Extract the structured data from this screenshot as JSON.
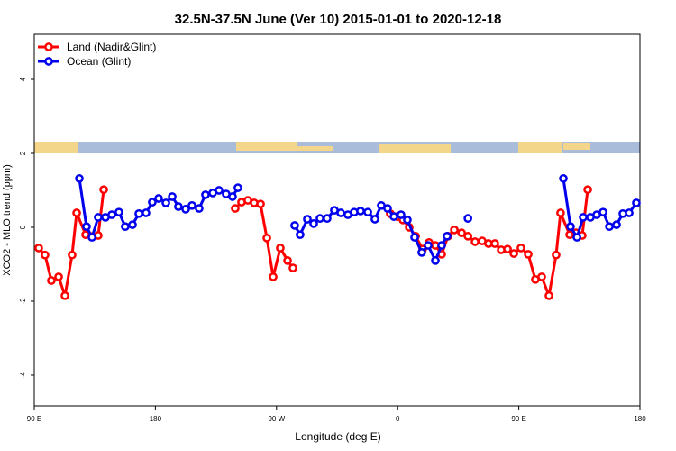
{
  "chart_data": {
    "type": "line",
    "title": "32.5N-37.5N June (Ver 10)   2015-01-01 to 2020-12-18",
    "x_label": "Longitude (deg E)",
    "y_label": "XCO2 - MLO trend (ppm)",
    "xlim": [
      90,
      540
    ],
    "ylim": [
      -4.83,
      5.22
    ],
    "xticks": [
      {
        "value": 90,
        "label": "90 E"
      },
      180,
      {
        "value": 270,
        "label": "90 W"
      },
      {
        "value": 360,
        "label": "0"
      },
      {
        "value": 450,
        "label": "90 E"
      },
      {
        "value": 540,
        "label": "180"
      }
    ],
    "yticks": [
      -4,
      -2,
      0,
      2,
      4
    ],
    "legend": "top-left",
    "series": [
      {
        "name": "Land (Nadir&Glint)",
        "color": "#ff0000",
        "x": [
          93.3,
          98,
          102.7,
          108.1,
          112.8,
          118.1,
          121.5,
          128.2,
          132.9,
          137.5,
          141.6,
          null,
          239.3,
          244,
          248.7,
          253.4,
          258.1,
          262.8,
          267.5,
          272.8,
          278.2,
          282.2,
          null,
          354.5,
          359.8,
          363.9,
          368.6,
          373.3,
          378.6,
          383.3,
          388,
          392.7,
          397.4,
          402.1,
          407.5,
          412.2,
          417.5,
          422.8,
          427.5,
          432.2,
          436.9,
          441.6,
          446.3,
          451.6,
          457,
          462.3,
          467,
          472.4,
          477.7,
          481,
          487.8,
          492.5,
          497.1,
          501.2
        ],
        "values": [
          -0.56,
          -0.75,
          -1.44,
          -1.34,
          -1.85,
          -0.75,
          0.39,
          -0.2,
          -0.25,
          -0.22,
          1.02,
          null,
          0.51,
          0.68,
          0.73,
          0.66,
          0.63,
          -0.29,
          -1.34,
          -0.56,
          -0.9,
          -1.1,
          null,
          0.37,
          0.29,
          0.2,
          0.0,
          -0.24,
          -0.59,
          -0.41,
          -0.49,
          -0.73,
          -0.24,
          -0.07,
          -0.15,
          -0.24,
          -0.39,
          -0.37,
          -0.44,
          -0.44,
          -0.61,
          -0.59,
          -0.71,
          -0.56,
          -0.73,
          -1.41,
          -1.34,
          -1.85,
          -0.75,
          0.39,
          -0.2,
          -0.15,
          -0.22,
          1.02
        ]
      },
      {
        "name": "Ocean (Glint)",
        "color": "#0000ee",
        "x": [
          123.5,
          128.8,
          132.9,
          137.5,
          142.9,
          147.6,
          152.9,
          157.6,
          163,
          167.7,
          173,
          177.7,
          182.4,
          187.8,
          192.5,
          197.1,
          202.5,
          207.2,
          212.5,
          217.2,
          222.6,
          227.3,
          232.6,
          237.3,
          241.3,
          null,
          283.5,
          287.5,
          292.9,
          297.6,
          302.3,
          307.6,
          313,
          317.7,
          323,
          327.7,
          332.4,
          337.8,
          343.1,
          347.8,
          352.5,
          357.2,
          362.5,
          367.2,
          372.6,
          377.9,
          382.6,
          388,
          392.7,
          396.7,
          null,
          412.2,
          null,
          483.1,
          488.4,
          493.2,
          497.8,
          503.2,
          507.9,
          512.6,
          517.3,
          522.6,
          527.3,
          532,
          537.3
        ],
        "values": [
          1.32,
          0.02,
          -0.27,
          0.27,
          0.27,
          0.34,
          0.41,
          0.02,
          0.07,
          0.37,
          0.39,
          0.68,
          0.78,
          0.66,
          0.83,
          0.56,
          0.49,
          0.59,
          0.51,
          0.88,
          0.93,
          1.0,
          0.9,
          0.83,
          1.07,
          null,
          0.05,
          -0.2,
          0.22,
          0.1,
          0.24,
          0.24,
          0.46,
          0.39,
          0.34,
          0.41,
          0.44,
          0.41,
          0.22,
          0.59,
          0.51,
          0.29,
          0.34,
          0.2,
          -0.27,
          -0.68,
          -0.49,
          -0.9,
          -0.49,
          -0.24,
          null,
          0.24,
          null,
          1.32,
          0.02,
          -0.27,
          0.27,
          0.27,
          0.34,
          0.41,
          0.02,
          0.07,
          0.37,
          0.39,
          0.66
        ]
      }
    ]
  }
}
